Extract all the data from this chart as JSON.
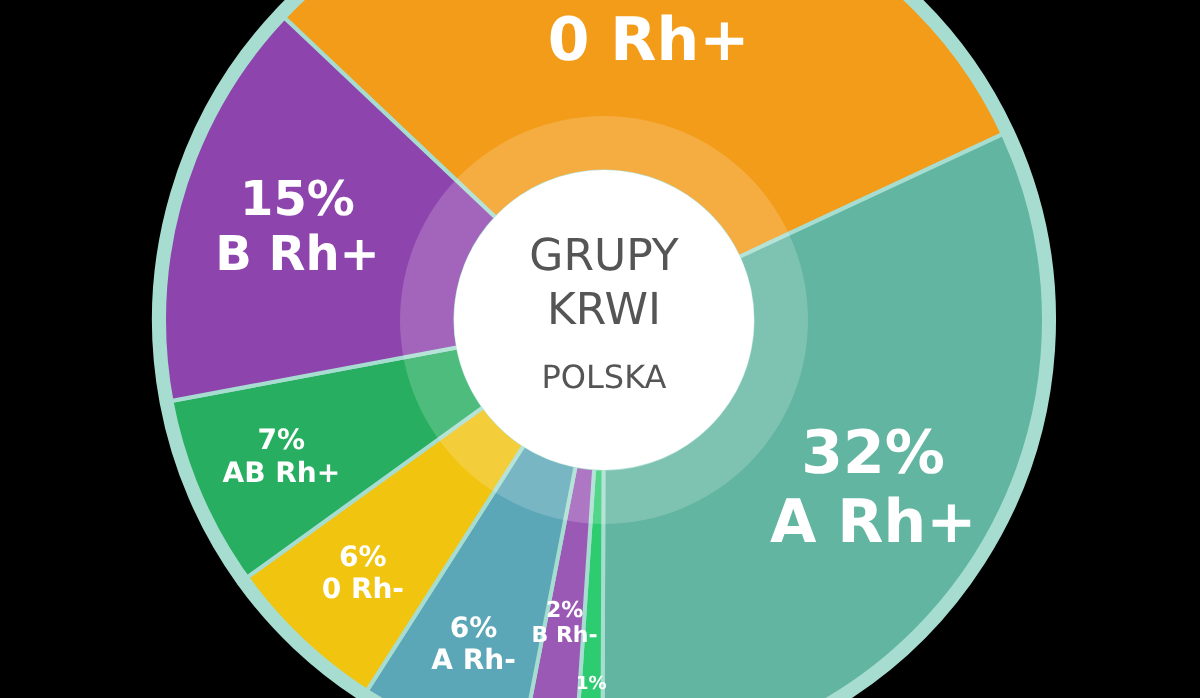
{
  "chart_data": {
    "type": "donut",
    "title": "GRUPY KRWI",
    "subtitle": "POLSKA",
    "categories": [
      "0 Rh+",
      "A Rh+",
      null,
      "B Rh-",
      "A Rh-",
      "0 Rh-",
      "AB Rh+",
      "B Rh+"
    ],
    "values": [
      31,
      32,
      1,
      2,
      6,
      6,
      7,
      15
    ],
    "value_labels": [
      null,
      "32%",
      "1%",
      "2%",
      "6%",
      "6%",
      "7%",
      "15%"
    ],
    "colors": [
      "#f39c19",
      "#62b5a0",
      "#2ecc71",
      "#9b59b6",
      "#5ba6b7",
      "#f1c40f",
      "#27ae60",
      "#8e44ad"
    ],
    "legend": false
  }
}
